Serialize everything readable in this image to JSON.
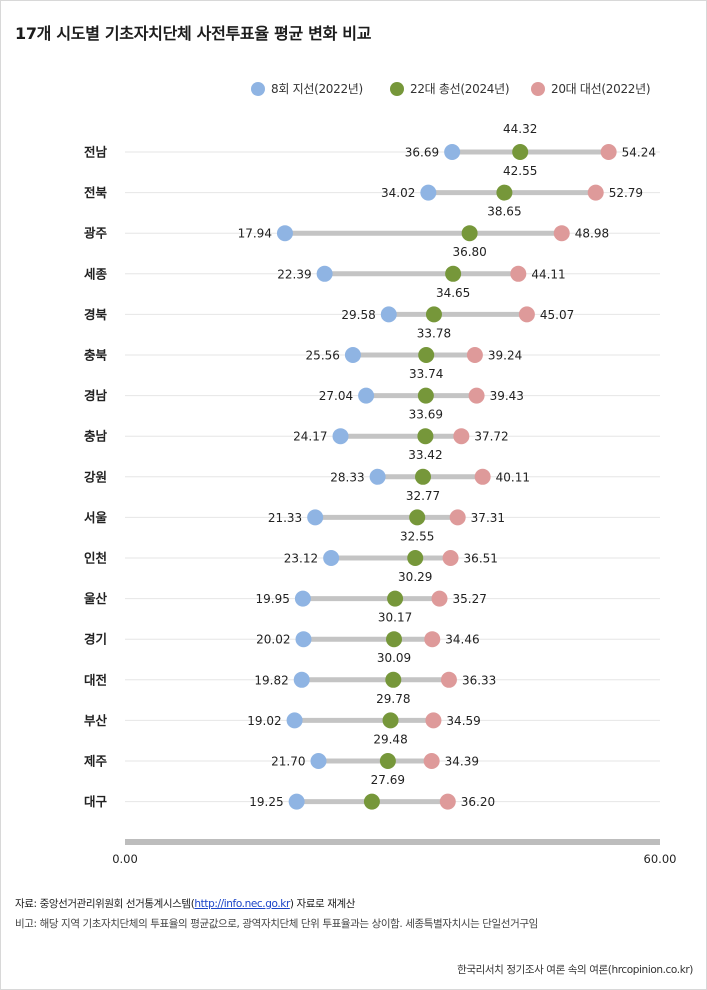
{
  "title": "17개 시도별 기초자치단체 사전투표율 평균 변화 비교",
  "chart_data": {
    "type": "dumbbell",
    "title": "17개 시도별 기초자치단체 사전투표율 평균 변화 비교",
    "xlim": [
      0,
      60
    ],
    "x_tick_labels": [
      "0.00",
      "60.00"
    ],
    "series": [
      {
        "name": "8회 지선(2022년)",
        "color": "#8fb4e3"
      },
      {
        "name": "22대 총선(2024년)",
        "color": "#76973a"
      },
      {
        "name": "20대 대선(2022년)",
        "color": "#de9a9a"
      }
    ],
    "categories": [
      "전남",
      "전북",
      "광주",
      "세종",
      "경북",
      "충북",
      "경남",
      "충남",
      "강원",
      "서울",
      "인천",
      "울산",
      "경기",
      "대전",
      "부산",
      "제주",
      "대구"
    ],
    "values": {
      "local_2022": [
        36.69,
        34.02,
        17.94,
        22.39,
        29.58,
        25.56,
        27.04,
        24.17,
        28.33,
        21.33,
        23.12,
        19.95,
        20.02,
        19.82,
        19.02,
        21.7,
        19.25
      ],
      "general_2024": [
        44.32,
        42.55,
        38.65,
        36.8,
        34.65,
        33.78,
        33.74,
        33.69,
        33.42,
        32.77,
        32.55,
        30.29,
        30.17,
        30.09,
        29.78,
        29.48,
        27.69
      ],
      "presidential_2022": [
        54.24,
        52.79,
        48.98,
        44.11,
        45.07,
        39.24,
        39.43,
        37.72,
        40.11,
        37.31,
        36.51,
        35.27,
        34.46,
        36.33,
        34.59,
        34.39,
        36.2
      ]
    },
    "label_text": {
      "local_2022": [
        "36.69",
        "34.02",
        "17.94",
        "22.39",
        "29.58",
        "25.56",
        "27.04",
        "24.17",
        "28.33",
        "21.33",
        "23.12",
        "19.95",
        "20.02",
        "19.82",
        "19.02",
        "21.70",
        "19.25"
      ],
      "general_2024": [
        "44.32",
        "42.55",
        "38.65",
        "36.80",
        "34.65",
        "33.78",
        "33.74",
        "33.69",
        "33.42",
        "32.77",
        "32.55",
        "30.29",
        "30.17",
        "30.09",
        "29.78",
        "29.48",
        "27.69"
      ],
      "presidential_2022": [
        "54.24",
        "52.79",
        "48.98",
        "44.11",
        "45.07",
        "39.24",
        "39.43",
        "37.72",
        "40.11",
        "37.31",
        "36.51",
        "35.27",
        "34.46",
        "36.33",
        "34.59",
        "34.39",
        "36.20"
      ]
    }
  },
  "footer": {
    "source_prefix": "자료: 중앙선거관리위원회 선거통계시스템(",
    "source_link": "http://info.nec.go.kr",
    "source_suffix": ") 자료로 재계산",
    "note": "비고: 해당 지역 기초자치단체의 투표율의 평균값으로, 광역자치단체 단위 투표율과는 상이함. 세종특별자치시는 단일선거구임",
    "credit": "한국리서치 정기조사 여론 속의 여론(hrcopinion.co.kr)"
  }
}
